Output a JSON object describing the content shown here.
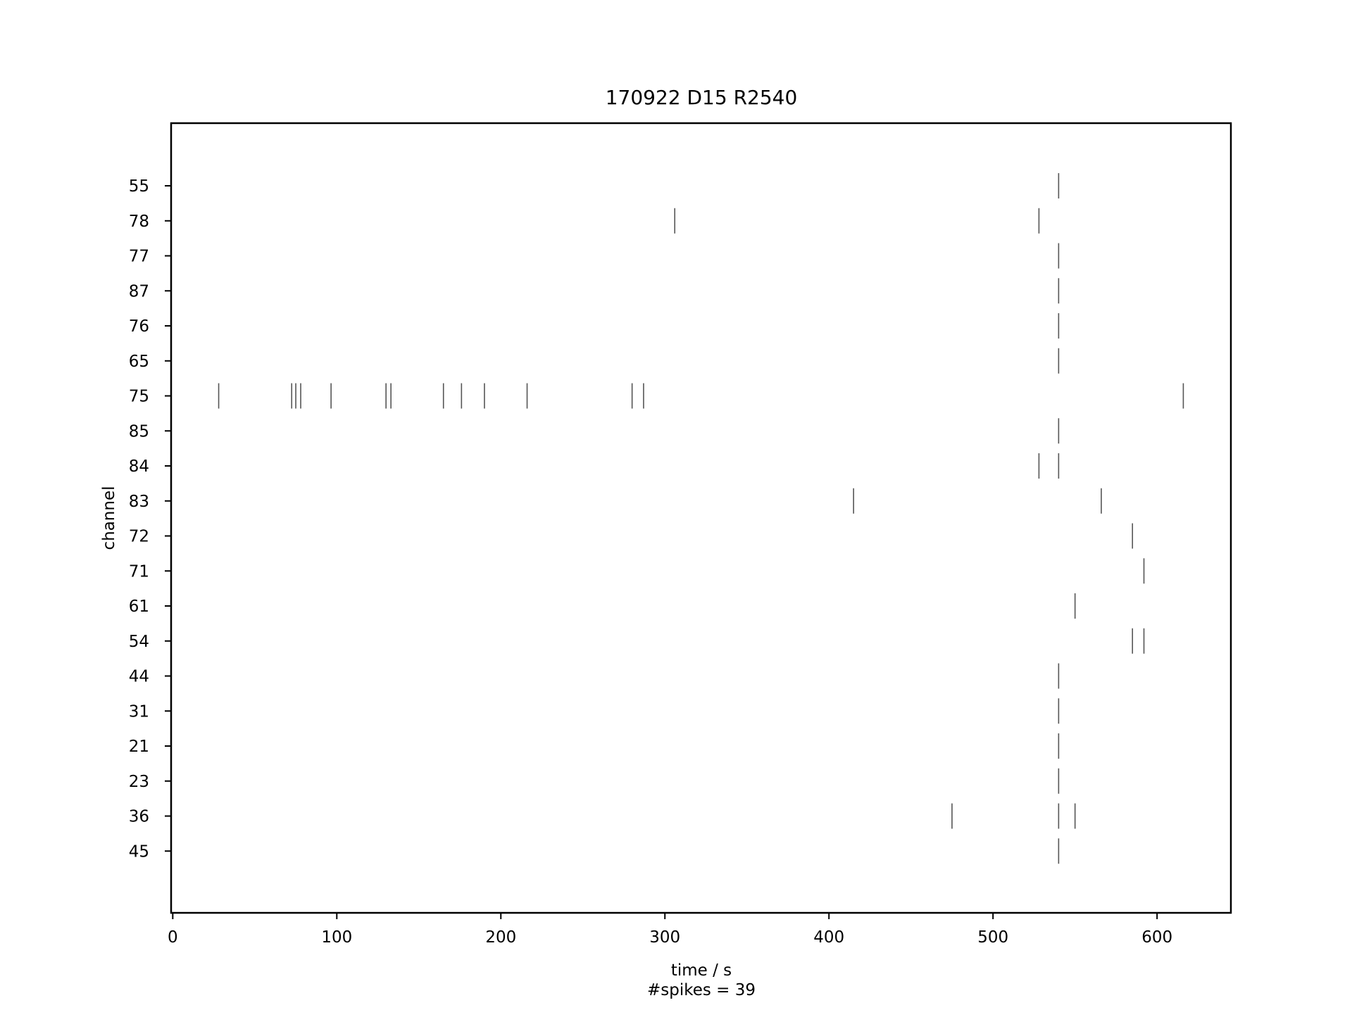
{
  "chart_data": {
    "type": "raster",
    "title": "170922 D15 R2540",
    "xlabel": "time / s",
    "xlabel_note": "#spikes = 39",
    "ylabel": "channel",
    "xlim": [
      -1,
      645
    ],
    "x_ticks": [
      0,
      100,
      200,
      300,
      400,
      500,
      600
    ],
    "channels": [
      "55",
      "78",
      "77",
      "87",
      "76",
      "65",
      "75",
      "85",
      "84",
      "83",
      "72",
      "71",
      "61",
      "54",
      "44",
      "31",
      "21",
      "23",
      "36",
      "45"
    ],
    "spikes": [
      {
        "channel": "55",
        "times": [
          540
        ]
      },
      {
        "channel": "78",
        "times": [
          306,
          528
        ]
      },
      {
        "channel": "77",
        "times": [
          540
        ]
      },
      {
        "channel": "87",
        "times": [
          540
        ]
      },
      {
        "channel": "76",
        "times": [
          540
        ]
      },
      {
        "channel": "65",
        "times": [
          540
        ]
      },
      {
        "channel": "75",
        "times": [
          28,
          72.5,
          75,
          78,
          96.5,
          130,
          133,
          165,
          176,
          190,
          216,
          280,
          287,
          616
        ]
      },
      {
        "channel": "85",
        "times": [
          540
        ]
      },
      {
        "channel": "84",
        "times": [
          528,
          540
        ]
      },
      {
        "channel": "83",
        "times": [
          415,
          566
        ]
      },
      {
        "channel": "72",
        "times": [
          585
        ]
      },
      {
        "channel": "71",
        "times": [
          592
        ]
      },
      {
        "channel": "61",
        "times": [
          550
        ]
      },
      {
        "channel": "54",
        "times": [
          585,
          592
        ]
      },
      {
        "channel": "44",
        "times": [
          540
        ]
      },
      {
        "channel": "31",
        "times": [
          540
        ]
      },
      {
        "channel": "21",
        "times": [
          540
        ]
      },
      {
        "channel": "23",
        "times": [
          540
        ]
      },
      {
        "channel": "36",
        "times": [
          475,
          540,
          550
        ]
      },
      {
        "channel": "45",
        "times": [
          540
        ]
      }
    ],
    "colors": {
      "spike": "#555555",
      "axis": "#000000"
    }
  }
}
